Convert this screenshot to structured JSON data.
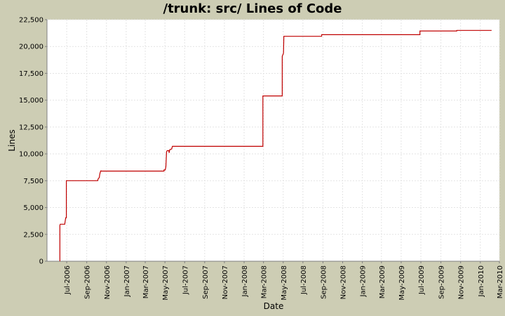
{
  "chart_data": {
    "type": "line",
    "title": "/trunk: src/ Lines of Code",
    "xlabel": "Date",
    "ylabel": "Lines",
    "xlim": [
      "2006-05-01",
      "2010-03-01"
    ],
    "ylim": [
      0,
      22500
    ],
    "grid": true,
    "legend": "none",
    "colors": {
      "background": "#cdcdb4",
      "plot_background": "#ffffff",
      "line": "#c00000",
      "grid": "#e4e4e4"
    },
    "yticks": [
      0,
      2500,
      5000,
      7500,
      10000,
      12500,
      15000,
      17500,
      20000,
      22500
    ],
    "ytick_labels": [
      "0",
      "2,500",
      "5,000",
      "7,500",
      "10,000",
      "12,500",
      "15,000",
      "17,500",
      "20,000",
      "22,500"
    ],
    "xticks": [
      "2006-07-01",
      "2006-09-01",
      "2006-11-01",
      "2007-01-01",
      "2007-03-01",
      "2007-05-01",
      "2007-07-01",
      "2007-09-01",
      "2007-11-01",
      "2008-01-01",
      "2008-03-01",
      "2008-05-01",
      "2008-07-01",
      "2008-09-01",
      "2008-11-01",
      "2009-01-01",
      "2009-03-01",
      "2009-05-01",
      "2009-07-01",
      "2009-09-01",
      "2009-11-01",
      "2010-01-01",
      "2010-03-01"
    ],
    "xtick_labels": [
      "Jul-2006",
      "Sep-2006",
      "Nov-2006",
      "Jan-2007",
      "Mar-2007",
      "May-2007",
      "Jul-2007",
      "Sep-2007",
      "Nov-2007",
      "Jan-2008",
      "Mar-2008",
      "May-2008",
      "Jul-2008",
      "Sep-2008",
      "Nov-2008",
      "Jan-2009",
      "Mar-2009",
      "May-2009",
      "Jul-2009",
      "Sep-2009",
      "Nov-2009",
      "Jan-2010",
      "Mar-2010"
    ],
    "series": [
      {
        "x": [
          "2006-06-10",
          "2006-06-10",
          "2006-06-11",
          "2006-06-25",
          "2006-06-27",
          "2006-06-28",
          "2006-06-30",
          "2006-06-30",
          "2006-10-05",
          "2006-10-06",
          "2006-10-10",
          "2006-10-11",
          "2006-10-13",
          "2006-10-15",
          "2006-10-15",
          "2007-04-28",
          "2007-04-28",
          "2007-05-02",
          "2007-05-04",
          "2007-05-05",
          "2007-05-06",
          "2007-05-08",
          "2007-05-13",
          "2007-05-14",
          "2007-05-16",
          "2007-05-22",
          "2007-05-24",
          "2007-05-26",
          "2008-02-28",
          "2008-02-28",
          "2008-04-28",
          "2008-04-28",
          "2008-05-01",
          "2008-05-02",
          "2008-05-03",
          "2008-05-04",
          "2008-08-28",
          "2008-08-28",
          "2009-06-28",
          "2009-06-28",
          "2009-10-20",
          "2009-10-20",
          "2010-02-05"
        ],
        "y": [
          0,
          3350,
          3450,
          3450,
          3900,
          4050,
          4050,
          7500,
          7500,
          7650,
          7800,
          8050,
          8300,
          8450,
          8400,
          8400,
          8500,
          8500,
          8800,
          9500,
          10200,
          10300,
          10300,
          10100,
          10400,
          10450,
          10700,
          10700,
          10700,
          15400,
          15400,
          19100,
          19300,
          19400,
          20950,
          20950,
          20950,
          21100,
          21100,
          21450,
          21450,
          21500,
          21500
        ]
      }
    ]
  }
}
